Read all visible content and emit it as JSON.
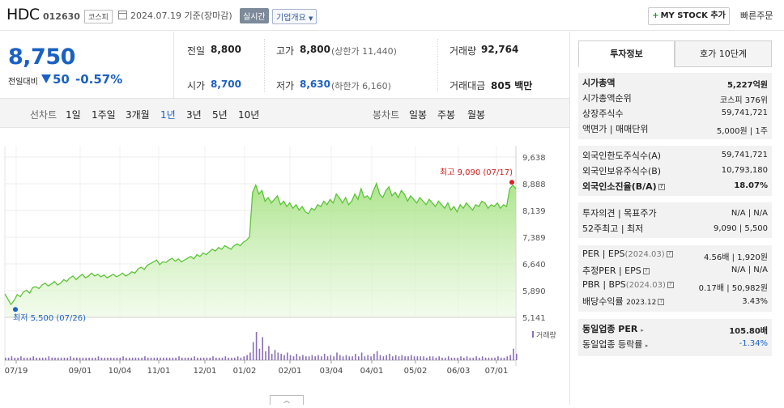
{
  "header": {
    "name": "HDC",
    "code": "012630",
    "market": "코스피",
    "date": "2024.07.19",
    "date_suffix": "기준(장마감)",
    "live_label": "실시간",
    "overview_label": "기업개요",
    "mystock_label": "MY STOCK 추가",
    "quick_order_label": "빠른주문"
  },
  "price": {
    "current": "8,750",
    "change_label": "전일대비",
    "change_value": "50",
    "change_pct": "-0.57%"
  },
  "fields": {
    "prev_label": "전일",
    "prev_value": "8,800",
    "high_label": "고가",
    "high_value": "8,800",
    "high_sub": "(상한가 11,440)",
    "volume_label": "거래량",
    "volume_value": "92,764",
    "open_label": "시가",
    "open_value": "8,700",
    "low_label": "저가",
    "low_value": "8,630",
    "low_sub": "(하한가 6,160)",
    "amount_label": "거래대금",
    "amount_value": "805 백만"
  },
  "periods": {
    "line_label": "선차트",
    "line_items": [
      "1일",
      "1주일",
      "3개월",
      "1년",
      "3년",
      "5년",
      "10년"
    ],
    "selected": "1년",
    "candle_label": "봉차트",
    "candle_items": [
      "일봉",
      "주봉",
      "월봉"
    ]
  },
  "chart_data": {
    "type": "area",
    "title": "",
    "x_ticks": [
      "07/19",
      "09/01",
      "10/04",
      "11/01",
      "12/01",
      "01/02",
      "02/01",
      "03/04",
      "04/01",
      "05/02",
      "06/03",
      "07/01"
    ],
    "y_ticks": [
      "9,638",
      "8,888",
      "8,139",
      "7,389",
      "6,640",
      "5,890",
      "5,141"
    ],
    "ylim": [
      5141,
      9638
    ],
    "grid": true,
    "max_label": "최고 9,090 (07/17)",
    "min_label": "최저 5,500 (07/26)",
    "volume_label": "거래량",
    "series": [
      {
        "values": [
          5800,
          5650,
          5500,
          5620,
          5780,
          5720,
          5850,
          5900,
          5820,
          5980,
          6000,
          5950,
          6050,
          6100,
          6020,
          6080,
          6150,
          6050,
          6100,
          6200,
          6150,
          6250,
          6300,
          6200,
          6280,
          6350,
          6250,
          6300,
          6380,
          6300,
          6350,
          6280,
          6330,
          6250,
          6300,
          6350,
          6280,
          6320,
          6380,
          6300,
          6350,
          6420,
          6380,
          6500,
          6550,
          6480,
          6600,
          6650,
          6700,
          6750,
          6620,
          6700,
          6680,
          6750,
          6800,
          6720,
          6780,
          6700,
          6750,
          6800,
          6850,
          6780,
          6900,
          6850,
          6950,
          6900,
          6980,
          7050,
          7000,
          7100,
          7050,
          7150,
          7100,
          7050,
          7150,
          7200,
          7150,
          7250,
          7300,
          7400,
          8650,
          8850,
          8600,
          8700,
          8400,
          8500,
          8350,
          8450,
          8550,
          8300,
          8400,
          8250,
          8350,
          8200,
          8300,
          8150,
          8250,
          8100,
          8050,
          8200,
          8150,
          8300,
          8250,
          8400,
          8300,
          8450,
          8350,
          8600,
          8500,
          8350,
          8500,
          8300,
          8400,
          8600,
          8450,
          8750,
          8500,
          8550,
          8450,
          8700,
          8900,
          8600,
          8500,
          8700,
          8800,
          8550,
          8650,
          8500,
          8700,
          8600,
          8400,
          8550,
          8450,
          8350,
          8500,
          8400,
          8300,
          8450,
          8350,
          8250,
          8400,
          8300,
          8200,
          8350,
          8150,
          8250,
          8100,
          8300,
          8200,
          8350,
          8250,
          8150,
          8300,
          8250,
          8400,
          8350,
          8200,
          8300,
          8250,
          8350,
          8200,
          8300,
          8250,
          8750,
          8850,
          8750
        ]
      }
    ],
    "volume": [
      2,
      2,
      3,
      2,
      2,
      3,
      2,
      2,
      2,
      3,
      2,
      2,
      2,
      2,
      3,
      2,
      2,
      2,
      2,
      2,
      2,
      3,
      2,
      2,
      2,
      2,
      2,
      2,
      2,
      2,
      3,
      2,
      2,
      2,
      2,
      2,
      2,
      2,
      3,
      2,
      2,
      2,
      2,
      2,
      2,
      3,
      2,
      2,
      2,
      2,
      2,
      2,
      2,
      2,
      2,
      2,
      3,
      2,
      2,
      2,
      2,
      3,
      2,
      2,
      2,
      2,
      2,
      3,
      2,
      2,
      2,
      3,
      2,
      2,
      2,
      3,
      2,
      3,
      4,
      6,
      14,
      22,
      9,
      18,
      7,
      11,
      5,
      8,
      6,
      5,
      4,
      6,
      4,
      3,
      5,
      3,
      4,
      3,
      3,
      4,
      3,
      4,
      3,
      5,
      3,
      4,
      3,
      6,
      4,
      3,
      4,
      3,
      3,
      5,
      3,
      6,
      3,
      4,
      3,
      5,
      7,
      4,
      3,
      4,
      5,
      3,
      4,
      3,
      4,
      3,
      3,
      4,
      3,
      3,
      3,
      3,
      2,
      3,
      3,
      2,
      3,
      2,
      2,
      3,
      2,
      2,
      2,
      3,
      2,
      3,
      2,
      2,
      3,
      2,
      3,
      2,
      2,
      2,
      2,
      3,
      2,
      2,
      3,
      4,
      9,
      5
    ]
  },
  "right_panel": {
    "tabs": [
      "투자정보",
      "호가 10단계"
    ],
    "group1": [
      {
        "label": "시가총액",
        "value": "5,227억원",
        "bold": true
      },
      {
        "label": "시가총액순위",
        "value": "코스피 376위"
      },
      {
        "label": "상장주식수",
        "value": "59,741,721"
      },
      {
        "label": "액면가 | 매매단위",
        "value": "5,000원 | 1주"
      }
    ],
    "group2": [
      {
        "label": "외국인한도주식수(A)",
        "value": "59,741,721"
      },
      {
        "label": "외국인보유주식수(B)",
        "value": "10,793,180"
      },
      {
        "label": "외국인소진율(B/A)",
        "value": "18.07%",
        "bold": true
      }
    ],
    "group3": [
      {
        "label": "투자의견 | 목표주가",
        "value": "N/A | N/A"
      },
      {
        "label": "52주최고 | 최저",
        "value": "9,090 | 5,500"
      }
    ],
    "group4": [
      {
        "label": "PER | EPS",
        "paren": "(2024.03)",
        "value": "4.56배 | 1,920원"
      },
      {
        "label": "추정PER | EPS",
        "value": "N/A | N/A"
      },
      {
        "label": "PBR | BPS",
        "paren": "(2024.03)",
        "value": "0.17배 | 50,982원"
      },
      {
        "label": "배당수익률",
        "paren": "2023.12",
        "value": "3.43%"
      }
    ],
    "group5": [
      {
        "label": "동일업종 PER",
        "value": "105.80배",
        "bold": true
      },
      {
        "label": "동일업종 등락률",
        "value": "-1.34%"
      }
    ]
  }
}
